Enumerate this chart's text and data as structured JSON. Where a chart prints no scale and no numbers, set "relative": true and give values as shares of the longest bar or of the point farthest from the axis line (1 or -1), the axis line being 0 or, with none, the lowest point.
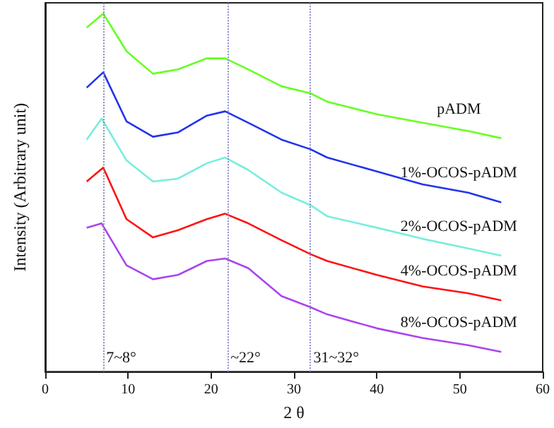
{
  "chart_data": {
    "type": "line",
    "relative": true,
    "xlabel": "2 θ",
    "ylabel": "Intensity (Arbitrary unit)",
    "xlim": [
      0,
      60
    ],
    "xticks": [
      0,
      10,
      20,
      30,
      40,
      50,
      60
    ],
    "grid": false,
    "legend": false,
    "marker": "none",
    "line_style": "solid",
    "series": [
      {
        "name": "pADM",
        "color": "#66ff22",
        "x": [
          5,
          7,
          9.8,
          13,
          16,
          19.5,
          21.7,
          24.5,
          28.5,
          32,
          34,
          40,
          45.5,
          51,
          55
        ],
        "values": [
          0.961,
          1,
          0.895,
          0.832,
          0.844,
          0.875,
          0.875,
          0.844,
          0.797,
          0.777,
          0.754,
          0.719,
          0.695,
          0.672,
          0.652
        ]
      },
      {
        "name": "1%-OCOS-pADM",
        "color": "#2233ee",
        "x": [
          5,
          7,
          9.8,
          13,
          16,
          19.5,
          21.7,
          24.5,
          28.5,
          32,
          34,
          40,
          45.5,
          51,
          55
        ],
        "values": [
          0.793,
          0.836,
          0.699,
          0.656,
          0.668,
          0.715,
          0.727,
          0.695,
          0.648,
          0.621,
          0.598,
          0.559,
          0.523,
          0.5,
          0.473
        ]
      },
      {
        "name": "2%-OCOS-pADM",
        "color": "#77eedd",
        "x": [
          5,
          6.8,
          9.8,
          13,
          16,
          19.5,
          21.7,
          24.5,
          28.5,
          32,
          34,
          40,
          45.5,
          51,
          55
        ],
        "values": [
          0.648,
          0.707,
          0.59,
          0.531,
          0.539,
          0.582,
          0.598,
          0.563,
          0.5,
          0.465,
          0.434,
          0.402,
          0.371,
          0.344,
          0.324
        ]
      },
      {
        "name": "4%-OCOS-pADM",
        "color": "#ff1111",
        "x": [
          5,
          7,
          9.8,
          13,
          16,
          19.5,
          21.7,
          24.5,
          28.5,
          32,
          34,
          40,
          45.5,
          51,
          55
        ],
        "values": [
          0.531,
          0.57,
          0.426,
          0.375,
          0.395,
          0.426,
          0.441,
          0.414,
          0.367,
          0.328,
          0.309,
          0.27,
          0.238,
          0.219,
          0.199
        ]
      },
      {
        "name": "8%-OCOS-pADM",
        "color": "#aa44ee",
        "x": [
          5,
          6.8,
          8.1,
          9.8,
          13,
          16,
          19.5,
          21.7,
          24.5,
          28.5,
          32,
          34,
          40,
          45.5,
          51,
          55
        ],
        "values": [
          0.402,
          0.414,
          0.363,
          0.297,
          0.258,
          0.27,
          0.309,
          0.316,
          0.289,
          0.211,
          0.18,
          0.16,
          0.121,
          0.094,
          0.074,
          0.055
        ]
      }
    ],
    "ref_lines": [
      {
        "axis": "x",
        "value": 7,
        "label": "7~8°",
        "color": "#8888aa",
        "line_style": "dotted"
      },
      {
        "axis": "x",
        "value": 22,
        "label": "~22°",
        "color": "#8888cc",
        "line_style": "dotted"
      },
      {
        "axis": "x",
        "value": 32,
        "label": "31~32°",
        "color": "#8888cc",
        "line_style": "dotted"
      }
    ]
  }
}
